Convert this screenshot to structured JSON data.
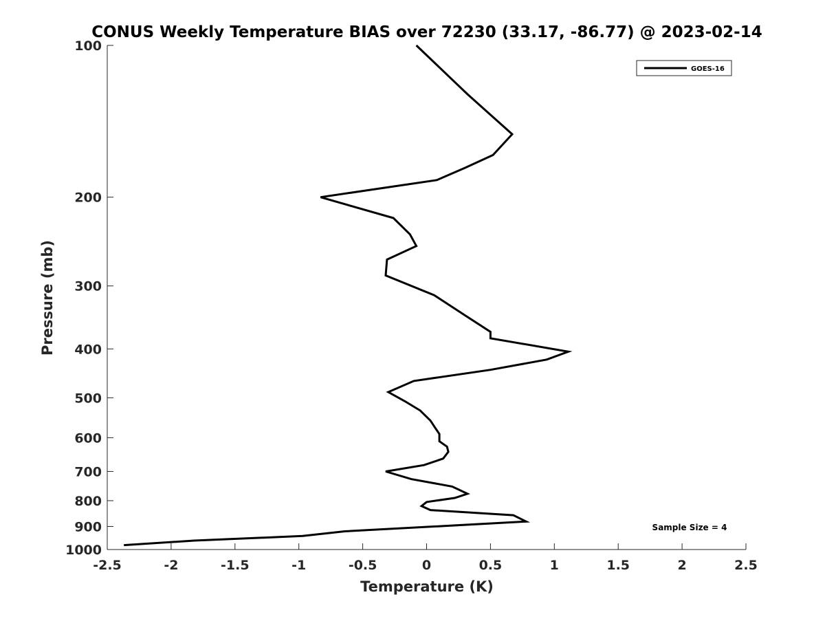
{
  "chart_data": {
    "type": "line",
    "title": "CONUS Weekly Temperature BIAS over 72230 (33.17, -86.77) @ 2023-02-14",
    "xlabel": "Temperature (K)",
    "ylabel": "Pressure (mb)",
    "xlim": [
      -2.5,
      2.5
    ],
    "ylim": [
      100,
      1000
    ],
    "yscale": "log",
    "y_reversed": true,
    "x_ticks": [
      "-2.5",
      "-2",
      "-1.5",
      "-1",
      "-0.5",
      "0",
      "0.5",
      "1",
      "1.5",
      "2",
      "2.5"
    ],
    "y_ticks": [
      "100",
      "200",
      "300",
      "400",
      "500",
      "600",
      "700",
      "800",
      "900",
      "1000"
    ],
    "grid": false,
    "legend_position": "top-right",
    "series": [
      {
        "name": "GOES-16",
        "color": "#000000",
        "points": [
          {
            "x": -0.08,
            "p": 100
          },
          {
            "x": 0.32,
            "p": 125
          },
          {
            "x": 0.67,
            "p": 150
          },
          {
            "x": 0.52,
            "p": 165
          },
          {
            "x": 0.3,
            "p": 175
          },
          {
            "x": 0.08,
            "p": 185
          },
          {
            "x": -0.83,
            "p": 200
          },
          {
            "x": -0.26,
            "p": 220
          },
          {
            "x": -0.13,
            "p": 237
          },
          {
            "x": -0.08,
            "p": 250
          },
          {
            "x": -0.31,
            "p": 266
          },
          {
            "x": -0.32,
            "p": 286
          },
          {
            "x": 0.06,
            "p": 313
          },
          {
            "x": 0.3,
            "p": 343
          },
          {
            "x": 0.5,
            "p": 370
          },
          {
            "x": 0.5,
            "p": 381
          },
          {
            "x": 1.11,
            "p": 405
          },
          {
            "x": 0.94,
            "p": 420
          },
          {
            "x": 0.5,
            "p": 440
          },
          {
            "x": -0.1,
            "p": 463
          },
          {
            "x": -0.3,
            "p": 487
          },
          {
            "x": -0.17,
            "p": 508
          },
          {
            "x": -0.05,
            "p": 530
          },
          {
            "x": 0.03,
            "p": 555
          },
          {
            "x": 0.07,
            "p": 575
          },
          {
            "x": 0.1,
            "p": 590
          },
          {
            "x": 0.1,
            "p": 610
          },
          {
            "x": 0.16,
            "p": 625
          },
          {
            "x": 0.17,
            "p": 640
          },
          {
            "x": 0.13,
            "p": 660
          },
          {
            "x": -0.02,
            "p": 680
          },
          {
            "x": -0.32,
            "p": 700
          },
          {
            "x": -0.12,
            "p": 725
          },
          {
            "x": 0.2,
            "p": 750
          },
          {
            "x": 0.32,
            "p": 775
          },
          {
            "x": 0.22,
            "p": 790
          },
          {
            "x": 0.0,
            "p": 805
          },
          {
            "x": -0.04,
            "p": 820
          },
          {
            "x": 0.03,
            "p": 835
          },
          {
            "x": 0.68,
            "p": 855
          },
          {
            "x": 0.78,
            "p": 880
          },
          {
            "x": -0.64,
            "p": 920
          },
          {
            "x": -0.97,
            "p": 940
          },
          {
            "x": -1.82,
            "p": 960
          },
          {
            "x": -2.37,
            "p": 980
          }
        ]
      }
    ],
    "annotations": [
      "Sample Size = 4"
    ]
  }
}
